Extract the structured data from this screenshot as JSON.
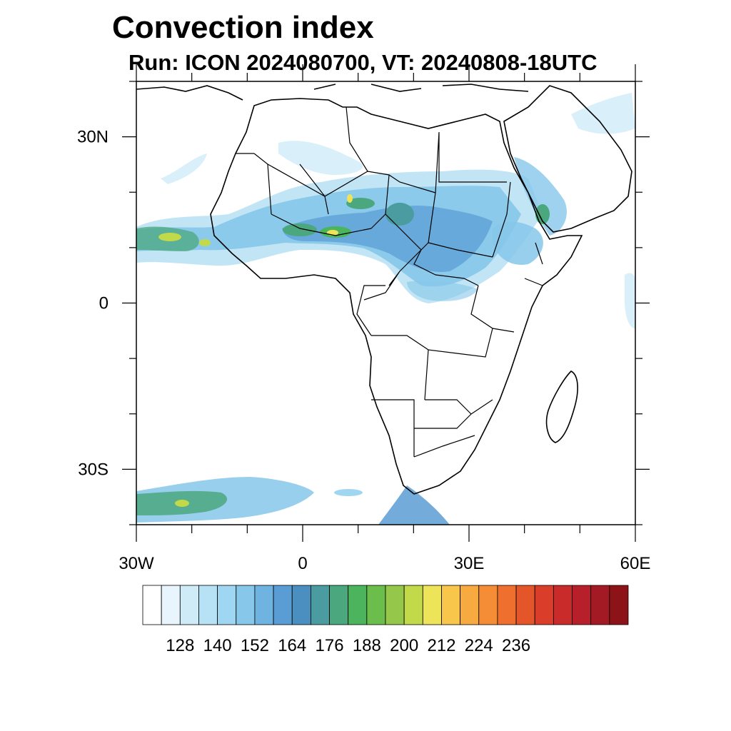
{
  "title": "Convection index",
  "subtitle": "Run: ICON 2024080700,  VT: 20240808-18UTC",
  "map": {
    "lon_range": [
      -30,
      60
    ],
    "lat_range": [
      -40,
      40
    ],
    "lat_tick_labels": [
      {
        "lat": 30,
        "label": "30N"
      },
      {
        "lat": 0,
        "label": "0"
      },
      {
        "lat": -30,
        "label": "30S"
      }
    ],
    "lon_tick_labels": [
      {
        "lon": -30,
        "label": "30W"
      },
      {
        "lon": 0,
        "label": "0"
      },
      {
        "lon": 30,
        "label": "30E"
      },
      {
        "lon": 60,
        "label": "60E"
      }
    ]
  },
  "colorbar": {
    "colors": [
      "#ffffff",
      "#e8f5fc",
      "#cfebf7",
      "#b7e1f4",
      "#9fd6f2",
      "#86c7ea",
      "#6fb3e1",
      "#5a9dd4",
      "#4a8fc0",
      "#4a9ca0",
      "#4aa77e",
      "#4bb45c",
      "#6bbd4c",
      "#95c84a",
      "#c2d94a",
      "#eee45a",
      "#f7c64a",
      "#f6aa3f",
      "#f48d36",
      "#ee6f2e",
      "#e4552a",
      "#da3d29",
      "#c92a2a",
      "#b7202a",
      "#a31a24",
      "#8c1419"
    ],
    "tick_labels": [
      "128",
      "140",
      "152",
      "164",
      "176",
      "188",
      "200",
      "212",
      "224",
      "236"
    ]
  },
  "fields": {
    "sahel_band_color": "#86c7ea",
    "core_color": "#4bb45c",
    "peak_color": "#eee45a",
    "coast_color": "#000000"
  }
}
